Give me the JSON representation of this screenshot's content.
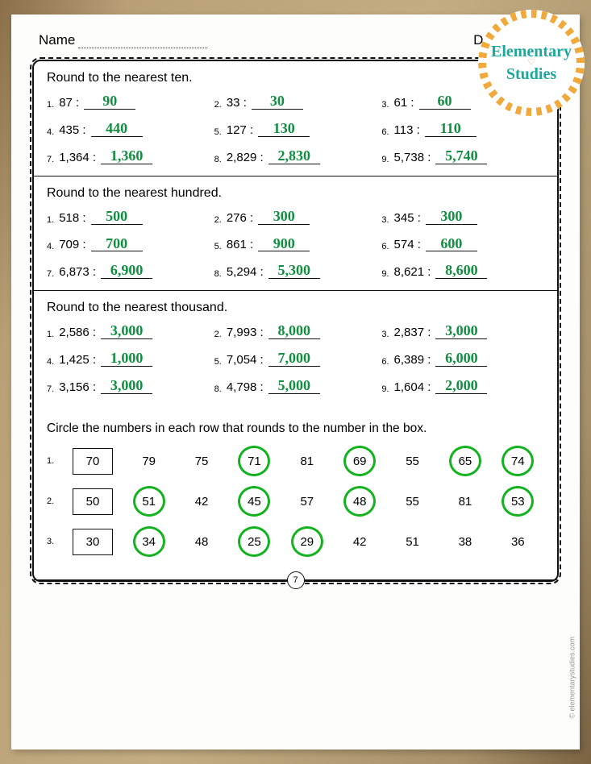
{
  "header": {
    "name_label": "Name",
    "date_label": "Date"
  },
  "badge": {
    "line1": "Elementary",
    "line2": "Studies"
  },
  "colors": {
    "answer": "#0f8f3f",
    "circle": "#13b21f",
    "badge_ring": "#f2a93b",
    "badge_text": "#1da89b"
  },
  "page_number": "7",
  "copyright": "© elementarystudies.com",
  "sections": [
    {
      "title": "Round to the nearest ten.",
      "items": [
        {
          "n": "1.",
          "q": "87 :",
          "a": "90"
        },
        {
          "n": "2.",
          "q": "33 :",
          "a": "30"
        },
        {
          "n": "3.",
          "q": "61 :",
          "a": "60"
        },
        {
          "n": "4.",
          "q": "435 :",
          "a": "440"
        },
        {
          "n": "5.",
          "q": "127 :",
          "a": "130"
        },
        {
          "n": "6.",
          "q": "113 :",
          "a": "110"
        },
        {
          "n": "7.",
          "q": "1,364 :",
          "a": "1,360"
        },
        {
          "n": "8.",
          "q": "2,829 :",
          "a": "2,830"
        },
        {
          "n": "9.",
          "q": "5,738 :",
          "a": "5,740"
        }
      ]
    },
    {
      "title": "Round to the nearest hundred.",
      "items": [
        {
          "n": "1.",
          "q": "518 :",
          "a": "500"
        },
        {
          "n": "2.",
          "q": "276 :",
          "a": "300"
        },
        {
          "n": "3.",
          "q": "345 :",
          "a": "300"
        },
        {
          "n": "4.",
          "q": "709 :",
          "a": "700"
        },
        {
          "n": "5.",
          "q": "861 :",
          "a": "900"
        },
        {
          "n": "6.",
          "q": "574 :",
          "a": "600"
        },
        {
          "n": "7.",
          "q": "6,873 :",
          "a": "6,900"
        },
        {
          "n": "8.",
          "q": "5,294 :",
          "a": "5,300"
        },
        {
          "n": "9.",
          "q": "8,621 :",
          "a": "8,600"
        }
      ]
    },
    {
      "title": "Round to the nearest thousand.",
      "items": [
        {
          "n": "1.",
          "q": "2,586 :",
          "a": "3,000"
        },
        {
          "n": "2.",
          "q": "7,993 :",
          "a": "8,000"
        },
        {
          "n": "3.",
          "q": "2,837 :",
          "a": "3,000"
        },
        {
          "n": "4.",
          "q": "1,425 :",
          "a": "1,000"
        },
        {
          "n": "5.",
          "q": "7,054 :",
          "a": "7,000"
        },
        {
          "n": "6.",
          "q": "6,389 :",
          "a": "6,000"
        },
        {
          "n": "7.",
          "q": "3,156 :",
          "a": "3,000"
        },
        {
          "n": "8.",
          "q": "4,798 :",
          "a": "5,000"
        },
        {
          "n": "9.",
          "q": "1,604 :",
          "a": "2,000"
        }
      ]
    }
  ],
  "circle_section": {
    "title": "Circle the numbers in each row that rounds to the number in the box.",
    "rows": [
      {
        "n": "1.",
        "box": "70",
        "cells": [
          {
            "v": "79",
            "c": false
          },
          {
            "v": "75",
            "c": false
          },
          {
            "v": "71",
            "c": true
          },
          {
            "v": "81",
            "c": false
          },
          {
            "v": "69",
            "c": true
          },
          {
            "v": "55",
            "c": false
          },
          {
            "v": "65",
            "c": true
          },
          {
            "v": "74",
            "c": true
          }
        ]
      },
      {
        "n": "2.",
        "box": "50",
        "cells": [
          {
            "v": "51",
            "c": true
          },
          {
            "v": "42",
            "c": false
          },
          {
            "v": "45",
            "c": true
          },
          {
            "v": "57",
            "c": false
          },
          {
            "v": "48",
            "c": true
          },
          {
            "v": "55",
            "c": false
          },
          {
            "v": "81",
            "c": false
          },
          {
            "v": "53",
            "c": true
          }
        ]
      },
      {
        "n": "3.",
        "box": "30",
        "cells": [
          {
            "v": "34",
            "c": true
          },
          {
            "v": "48",
            "c": false
          },
          {
            "v": "25",
            "c": true
          },
          {
            "v": "29",
            "c": true
          },
          {
            "v": "42",
            "c": false
          },
          {
            "v": "51",
            "c": false
          },
          {
            "v": "38",
            "c": false
          },
          {
            "v": "36",
            "c": false
          }
        ]
      }
    ]
  }
}
